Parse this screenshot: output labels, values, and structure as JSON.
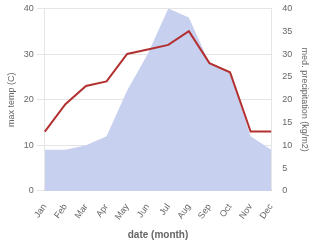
{
  "chart_data": {
    "type": "line",
    "categories": [
      "Jan",
      "Feb",
      "Mar",
      "Apr",
      "May",
      "Jun",
      "Jul",
      "Aug",
      "Sep",
      "Oct",
      "Nov",
      "Dec"
    ],
    "xlabel": "date (month)",
    "ylabel": "max temp (C)",
    "y2label": "med. precipitation (kg/m2)",
    "series": [
      {
        "type": "area",
        "color": "#c8d0f0",
        "axis": "y2",
        "values": [
          9,
          9,
          10,
          12,
          22,
          30,
          40,
          38,
          28,
          26,
          12,
          9
        ]
      },
      {
        "type": "line",
        "color": "#b33030",
        "values": [
          13,
          19,
          23,
          24,
          30,
          31,
          32,
          35,
          28,
          26,
          13,
          13
        ]
      }
    ],
    "ylim": [
      0,
      40
    ],
    "yticks": [
      0,
      10,
      20,
      30,
      40
    ],
    "y2lim": [
      0,
      40
    ],
    "y2ticks": [
      0,
      5,
      10,
      15,
      20,
      25,
      30,
      35,
      40
    ],
    "grid": true
  }
}
